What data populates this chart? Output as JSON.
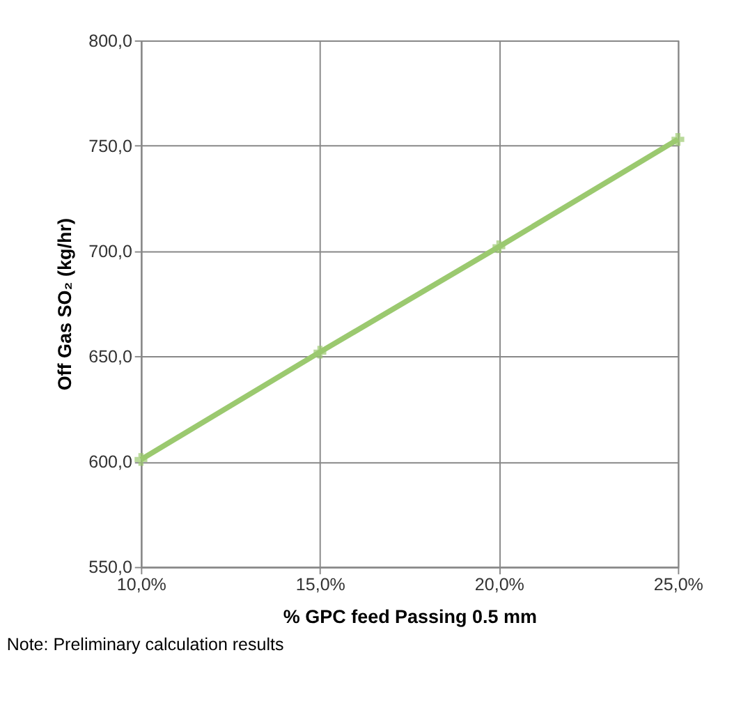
{
  "chart_data": {
    "type": "line",
    "xlabel": "% GPC feed Passing 0.5 mm",
    "ylabel": "Off Gas SO₂ (kg/hr)",
    "x": [
      10,
      15,
      20,
      25
    ],
    "series": [
      {
        "color": "#9bc96f",
        "values": [
          601,
          652,
          702,
          753
        ]
      }
    ],
    "xlim": [
      10,
      25
    ],
    "xticks": [
      {
        "value": 10,
        "label": "10,0%"
      },
      {
        "value": 15,
        "label": "15,0%"
      },
      {
        "value": 20,
        "label": "20,0%"
      },
      {
        "value": 25,
        "label": "25,0%"
      }
    ],
    "ylim": [
      550,
      800
    ],
    "yticks": [
      {
        "value": 550,
        "label": "550,0"
      },
      {
        "value": 600,
        "label": "600,0"
      },
      {
        "value": 650,
        "label": "650,0"
      },
      {
        "value": 700,
        "label": "700,0"
      },
      {
        "value": 750,
        "label": "750,0"
      },
      {
        "value": 800,
        "label": "800,0"
      }
    ],
    "grid": true,
    "marker": "cross",
    "line_style": "solid",
    "annotations": [
      "Note: Preliminary calculation results"
    ]
  }
}
